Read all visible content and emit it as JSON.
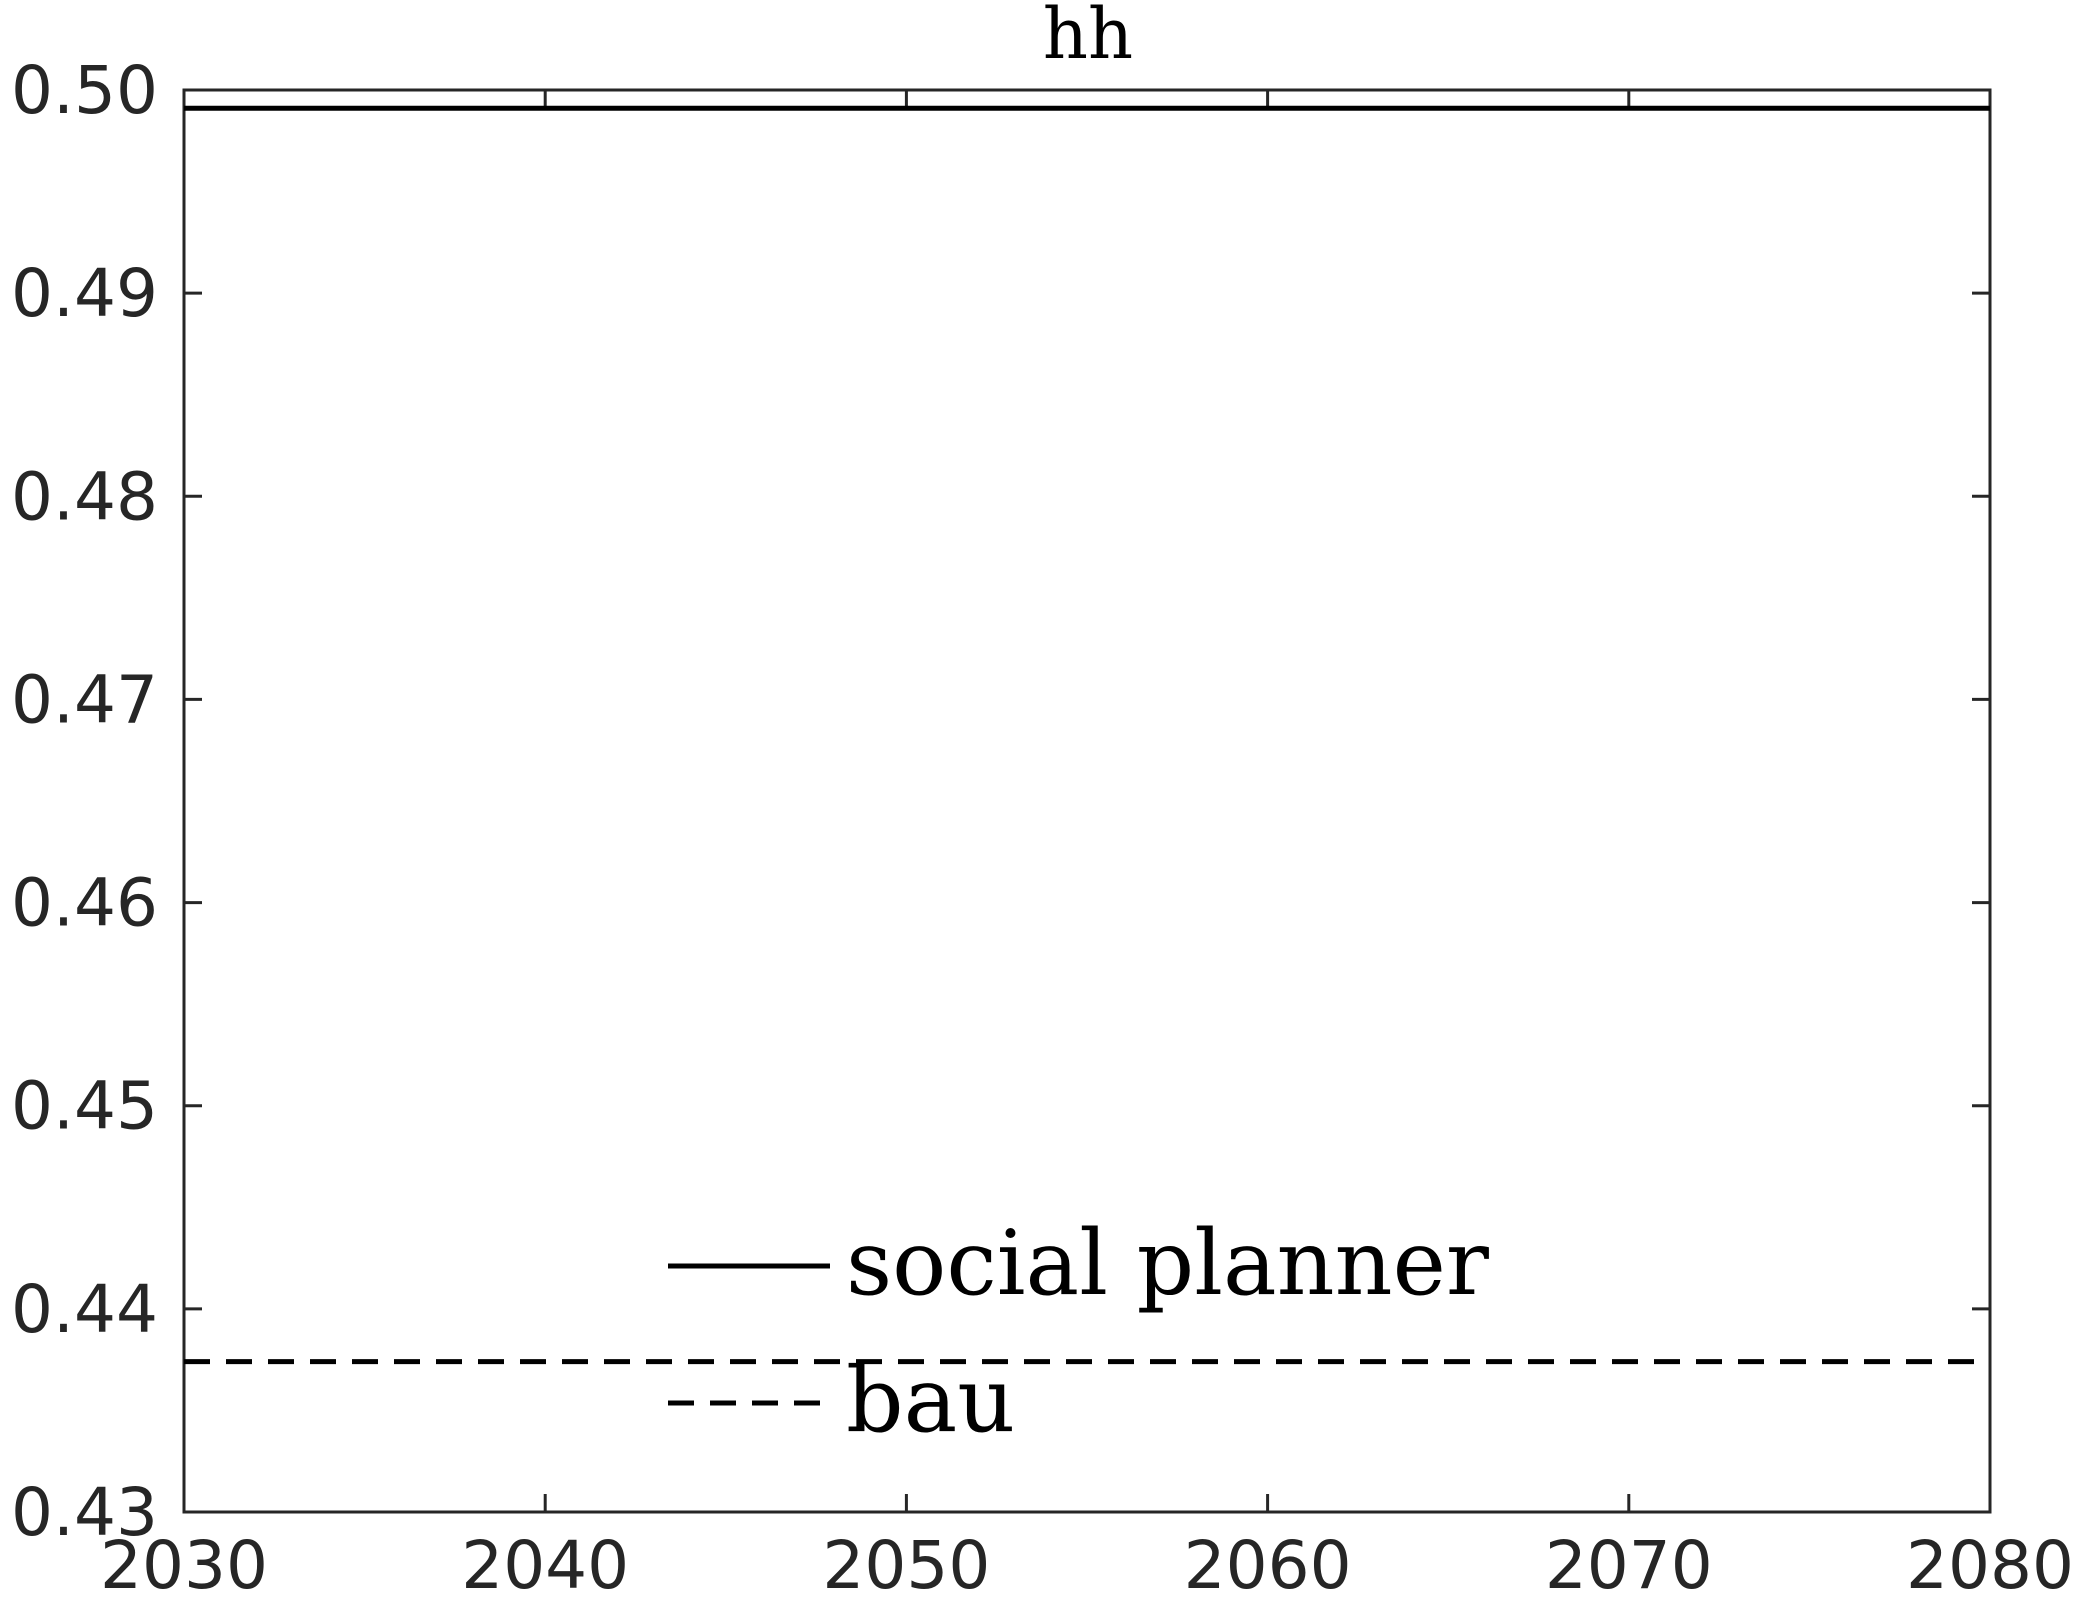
{
  "chart_data": {
    "type": "line",
    "title": "hh",
    "xlabel": "",
    "ylabel": "",
    "xlim": [
      2030,
      2080
    ],
    "ylim": [
      0.43,
      0.5
    ],
    "x_ticks": [
      "2030",
      "2040",
      "2050",
      "2060",
      "2070",
      "2080"
    ],
    "y_ticks": [
      "0.43",
      "0.44",
      "0.45",
      "0.46",
      "0.47",
      "0.48",
      "0.49",
      "0.50"
    ],
    "grid": false,
    "legend_position": "bottom-center",
    "series": [
      {
        "name": "social planner",
        "style": "solid",
        "color": "#000000",
        "x": [
          2030,
          2080
        ],
        "values": [
          0.4991,
          0.4991
        ]
      },
      {
        "name": "bau",
        "style": "dashed",
        "color": "#000000",
        "x": [
          2030,
          2080
        ],
        "values": [
          0.4374,
          0.4374
        ]
      }
    ]
  }
}
